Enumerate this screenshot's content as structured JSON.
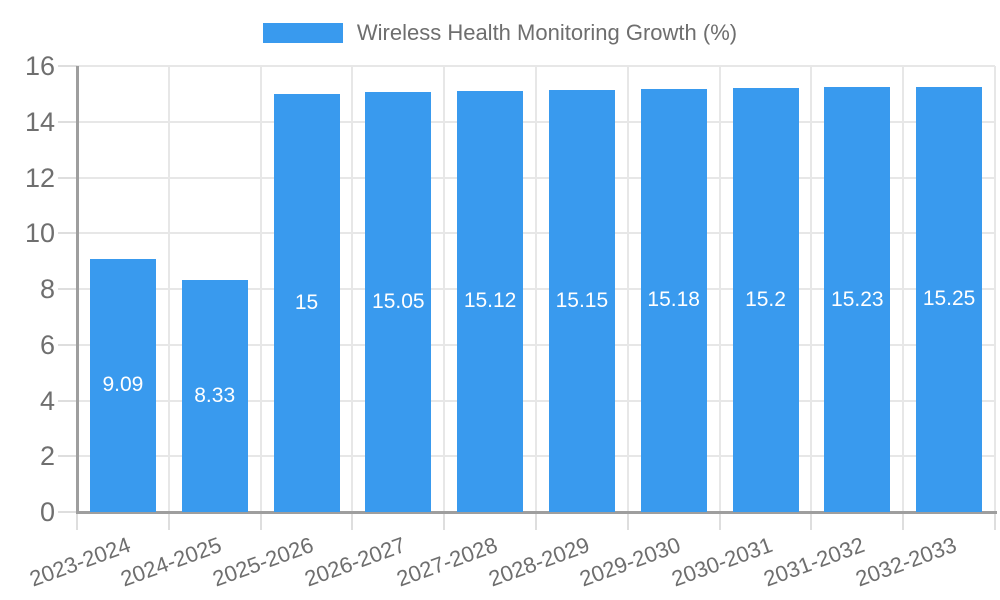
{
  "page": {
    "background": "#ffffff"
  },
  "legend": {
    "label": "Wireless Health Monitoring Growth (%)"
  },
  "chart_data": {
    "type": "bar",
    "title": "Wireless Health Monitoring Growth (%)",
    "categories": [
      "2023-2024",
      "2024-2025",
      "2025-2026",
      "2026-2027",
      "2027-2028",
      "2028-2029",
      "2029-2030",
      "2030-2031",
      "2031-2032",
      "2032-2033"
    ],
    "values": [
      9.09,
      8.33,
      15,
      15.05,
      15.12,
      15.15,
      15.18,
      15.2,
      15.23,
      15.25
    ],
    "bar_labels": [
      "9.09",
      "8.33",
      "15",
      "15.05",
      "15.12",
      "15.15",
      "15.18",
      "15.2",
      "15.23",
      "15.25"
    ],
    "xlabel": "",
    "ylabel": "",
    "ylim": [
      0,
      16
    ],
    "yticks": [
      0,
      2,
      4,
      6,
      8,
      10,
      12,
      14,
      16
    ],
    "grid": true,
    "legend_position": "top",
    "bar_color": "#399AEE",
    "grid_color": "#e7e7e7",
    "axis_color": "#9e9e9e",
    "tick_color": "#dedede",
    "axis_text_color": "#6e6e6e",
    "value_label_color": "#ffffff"
  }
}
